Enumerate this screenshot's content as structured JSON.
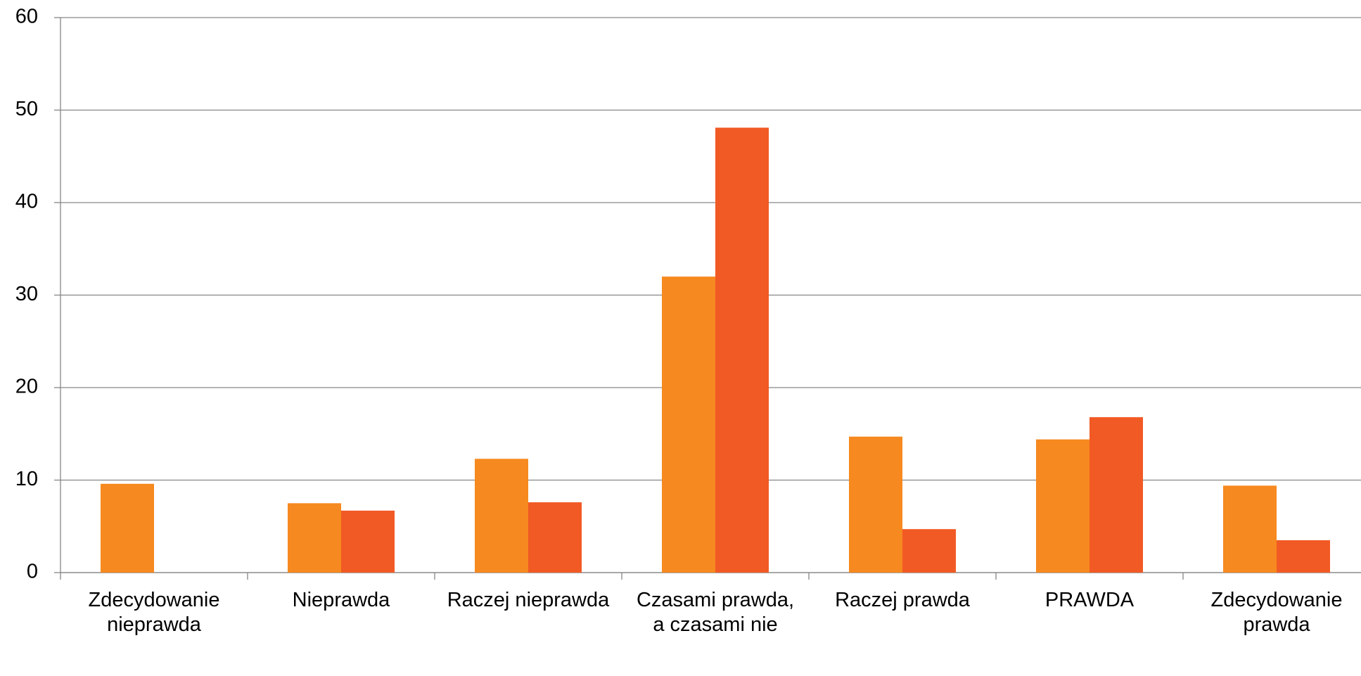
{
  "chart_data": {
    "type": "bar",
    "categories": [
      "Zdecydowanie nieprawda",
      "Nieprawda",
      "Raczej nieprawda",
      "Czasami prawda, a czasami nie",
      "Raczej prawda",
      "PRAWDA",
      "Zdecydowanie prawda"
    ],
    "series": [
      {
        "color": "#f6891f",
        "values": [
          9.6,
          7.5,
          12.3,
          32,
          14.7,
          14.4,
          9.4
        ]
      },
      {
        "color": "#f15a24",
        "values": [
          0,
          6.7,
          7.6,
          48.1,
          4.7,
          16.8,
          3.5
        ]
      }
    ],
    "ylim": [
      0,
      60
    ],
    "yticks": [
      0,
      10,
      20,
      30,
      40,
      50,
      60
    ],
    "grid": true
  }
}
